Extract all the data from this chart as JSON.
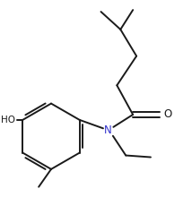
{
  "background_color": "#ffffff",
  "line_color": "#1a1a1a",
  "line_width": 1.4,
  "font_size": 7.5,
  "N_color": "#3333cc",
  "figsize": [
    2.05,
    2.49
  ],
  "dpi": 100,
  "xlim": [
    -0.05,
    1.85
  ],
  "ylim": [
    -0.15,
    2.35
  ]
}
